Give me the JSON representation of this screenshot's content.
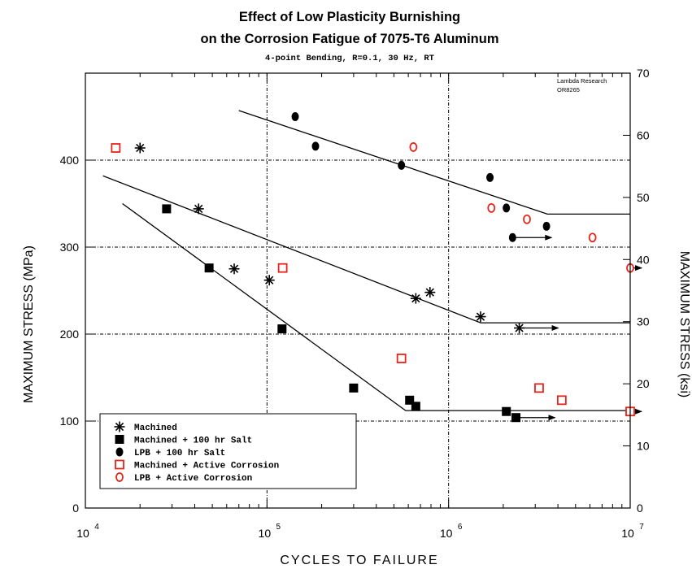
{
  "chart_data": {
    "type": "scatter",
    "title_line1": "Effect of Low Plasticity Burnishing",
    "title_line2": "on the Corrosion Fatigue of 7075-T6 Aluminum",
    "subtitle": "4-point Bending, R=0.1, 30 Hz, RT",
    "credit_line1": "Lambda Research",
    "credit_line2": "OR8265",
    "xlabel": "CYCLES TO FAILURE",
    "ylabel": "MAXIMUM STRESS (MPa)",
    "y2label": "MAXIMUM STRESS (ksi)",
    "xscale": "log",
    "xlim": [
      10000,
      10000000
    ],
    "ylim": [
      0,
      500
    ],
    "y2lim": [
      0,
      70
    ],
    "x_ticks": [
      {
        "value": 10000,
        "base": "10",
        "exp": "4"
      },
      {
        "value": 100000,
        "base": "10",
        "exp": "5"
      },
      {
        "value": 1000000,
        "base": "10",
        "exp": "6"
      },
      {
        "value": 10000000,
        "base": "10",
        "exp": "7"
      }
    ],
    "y_ticks": [
      {
        "value": 0,
        "label": "0"
      },
      {
        "value": 100,
        "label": "100"
      },
      {
        "value": 200,
        "label": "200"
      },
      {
        "value": 300,
        "label": "300"
      },
      {
        "value": 400,
        "label": "400"
      }
    ],
    "y2_ticks": [
      {
        "value": 0,
        "label": "0"
      },
      {
        "value": 10,
        "label": "10"
      },
      {
        "value": 20,
        "label": "20"
      },
      {
        "value": 30,
        "label": "30"
      },
      {
        "value": 40,
        "label": "40"
      },
      {
        "value": 50,
        "label": "50"
      },
      {
        "value": 60,
        "label": "60"
      },
      {
        "value": 70,
        "label": "70"
      }
    ],
    "grid": "dotted at 10^5, 10^6 and 100, 200, 300, 400 MPa",
    "legend_position": "bottom-left",
    "series": [
      {
        "name": "Machined",
        "marker": "asterisk",
        "color": "#000000",
        "points": [
          {
            "x": 20000,
            "y": 414
          },
          {
            "x": 42000,
            "y": 344
          },
          {
            "x": 66000,
            "y": 275
          },
          {
            "x": 103000,
            "y": 262
          },
          {
            "x": 660000,
            "y": 241
          },
          {
            "x": 790000,
            "y": 248
          },
          {
            "x": 1500000,
            "y": 220
          },
          {
            "x": 2450000,
            "y": 207,
            "runout": true
          }
        ],
        "fit": [
          [
            12500,
            382
          ],
          [
            1500000,
            213
          ],
          [
            10000000,
            213
          ]
        ]
      },
      {
        "name": "Machined + 100 hr Salt",
        "marker": "filled-square",
        "color": "#000000",
        "points": [
          {
            "x": 28000,
            "y": 344
          },
          {
            "x": 48000,
            "y": 276
          },
          {
            "x": 121000,
            "y": 206
          },
          {
            "x": 300000,
            "y": 138
          },
          {
            "x": 610000,
            "y": 124
          },
          {
            "x": 660000,
            "y": 117
          },
          {
            "x": 2080000,
            "y": 111
          },
          {
            "x": 2350000,
            "y": 104,
            "runout": true
          }
        ],
        "fit": [
          [
            16000,
            350
          ],
          [
            580000,
            112
          ],
          [
            10000000,
            112
          ]
        ]
      },
      {
        "name": "LPB + 100 hr Salt",
        "marker": "filled-circle",
        "color": "#000000",
        "points": [
          {
            "x": 143000,
            "y": 450
          },
          {
            "x": 185000,
            "y": 416
          },
          {
            "x": 550000,
            "y": 394
          },
          {
            "x": 1690000,
            "y": 380
          },
          {
            "x": 2080000,
            "y": 345
          },
          {
            "x": 2250000,
            "y": 311,
            "runout": true
          },
          {
            "x": 3460000,
            "y": 324
          }
        ],
        "fit": [
          [
            70000,
            457
          ],
          [
            3500000,
            338
          ],
          [
            10000000,
            338
          ]
        ]
      },
      {
        "name": "Machined + Active Corrosion",
        "marker": "open-square",
        "color": "#e8231a",
        "points": [
          {
            "x": 14700,
            "y": 414
          },
          {
            "x": 122000,
            "y": 276
          },
          {
            "x": 550000,
            "y": 172
          },
          {
            "x": 3150000,
            "y": 138
          },
          {
            "x": 4200000,
            "y": 124
          },
          {
            "x": 10000000,
            "y": 111,
            "runout": true
          }
        ]
      },
      {
        "name": "LPB + Active Corrosion",
        "marker": "open-circle",
        "color": "#e8231a",
        "points": [
          {
            "x": 640000,
            "y": 415
          },
          {
            "x": 1720000,
            "y": 345
          },
          {
            "x": 2700000,
            "y": 332
          },
          {
            "x": 6200000,
            "y": 311
          },
          {
            "x": 10000000,
            "y": 276,
            "runout": true
          }
        ]
      }
    ]
  }
}
